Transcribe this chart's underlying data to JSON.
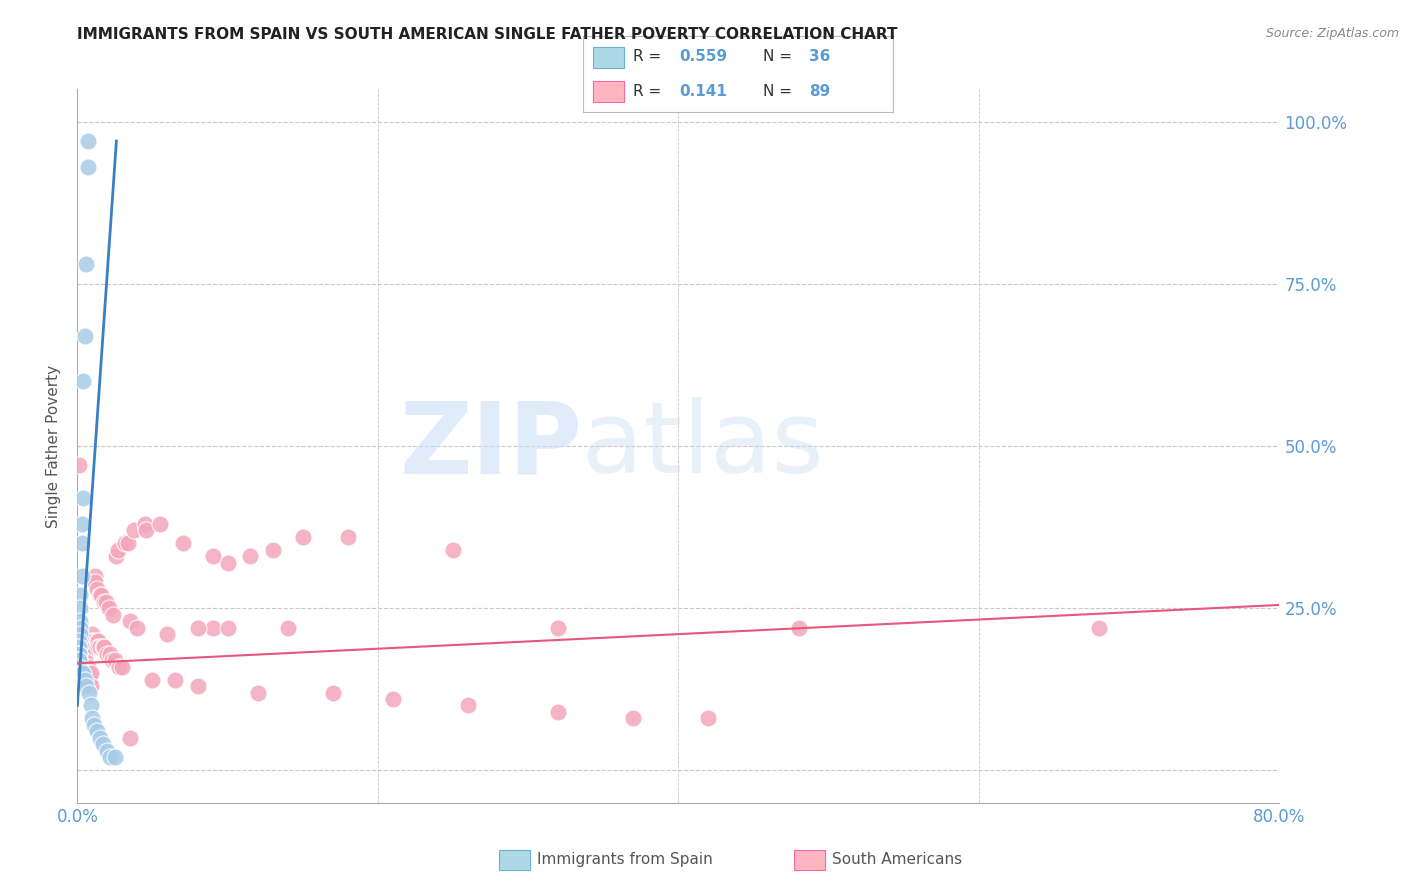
{
  "title": "IMMIGRANTS FROM SPAIN VS SOUTH AMERICAN SINGLE FATHER POVERTY CORRELATION CHART",
  "source": "Source: ZipAtlas.com",
  "ylabel": "Single Father Poverty",
  "xlim": [
    0.0,
    0.8
  ],
  "ylim": [
    -0.05,
    1.05
  ],
  "watermark_zip": "ZIP",
  "watermark_atlas": "atlas",
  "legend_R_blue": "0.559",
  "legend_N_blue": "36",
  "legend_R_pink": "0.141",
  "legend_N_pink": "89",
  "blue_color": "#a8cce8",
  "blue_line_color": "#3a7fc1",
  "pink_color": "#f4a7bb",
  "pink_line_color": "#e8567a",
  "grid_color": "#c8c8c8",
  "background_color": "#ffffff",
  "title_color": "#222222",
  "right_axis_color": "#5b9bd5",
  "xtick_color": "#5b9bd5",
  "blue_scatter_x": [
    0.007,
    0.007,
    0.006,
    0.005,
    0.004,
    0.004,
    0.003,
    0.003,
    0.003,
    0.002,
    0.002,
    0.002,
    0.002,
    0.002,
    0.001,
    0.001,
    0.001,
    0.001,
    0.001,
    0.001,
    0.001,
    0.001,
    0.003,
    0.004,
    0.005,
    0.006,
    0.008,
    0.009,
    0.01,
    0.011,
    0.013,
    0.015,
    0.017,
    0.02,
    0.022,
    0.025
  ],
  "blue_scatter_y": [
    0.97,
    0.93,
    0.78,
    0.67,
    0.6,
    0.42,
    0.38,
    0.35,
    0.3,
    0.27,
    0.25,
    0.23,
    0.22,
    0.21,
    0.2,
    0.19,
    0.19,
    0.18,
    0.18,
    0.17,
    0.17,
    0.16,
    0.15,
    0.15,
    0.14,
    0.13,
    0.12,
    0.1,
    0.08,
    0.07,
    0.06,
    0.05,
    0.04,
    0.03,
    0.02,
    0.02
  ],
  "pink_scatter_x": [
    0.001,
    0.001,
    0.001,
    0.002,
    0.002,
    0.002,
    0.003,
    0.003,
    0.003,
    0.004,
    0.004,
    0.004,
    0.004,
    0.005,
    0.005,
    0.005,
    0.005,
    0.006,
    0.006,
    0.006,
    0.007,
    0.007,
    0.007,
    0.008,
    0.008,
    0.009,
    0.009,
    0.01,
    0.01,
    0.011,
    0.011,
    0.012,
    0.012,
    0.013,
    0.013,
    0.014,
    0.014,
    0.015,
    0.015,
    0.016,
    0.017,
    0.018,
    0.018,
    0.019,
    0.02,
    0.021,
    0.022,
    0.023,
    0.024,
    0.025,
    0.026,
    0.027,
    0.028,
    0.03,
    0.032,
    0.034,
    0.035,
    0.038,
    0.04,
    0.045,
    0.046,
    0.05,
    0.055,
    0.06,
    0.065,
    0.07,
    0.08,
    0.09,
    0.1,
    0.12,
    0.14,
    0.17,
    0.21,
    0.26,
    0.32,
    0.37,
    0.42,
    0.48,
    0.32,
    0.25,
    0.18,
    0.15,
    0.13,
    0.115,
    0.1,
    0.09,
    0.08,
    0.68,
    0.035
  ],
  "pink_scatter_y": [
    0.47,
    0.21,
    0.15,
    0.19,
    0.15,
    0.13,
    0.18,
    0.16,
    0.14,
    0.17,
    0.16,
    0.15,
    0.13,
    0.17,
    0.16,
    0.15,
    0.13,
    0.16,
    0.15,
    0.14,
    0.16,
    0.15,
    0.13,
    0.15,
    0.14,
    0.15,
    0.13,
    0.21,
    0.2,
    0.2,
    0.19,
    0.3,
    0.29,
    0.2,
    0.28,
    0.2,
    0.19,
    0.27,
    0.19,
    0.27,
    0.19,
    0.26,
    0.19,
    0.26,
    0.18,
    0.25,
    0.18,
    0.17,
    0.24,
    0.17,
    0.33,
    0.34,
    0.16,
    0.16,
    0.35,
    0.35,
    0.23,
    0.37,
    0.22,
    0.38,
    0.37,
    0.14,
    0.38,
    0.21,
    0.14,
    0.35,
    0.13,
    0.22,
    0.22,
    0.12,
    0.22,
    0.12,
    0.11,
    0.1,
    0.09,
    0.08,
    0.08,
    0.22,
    0.22,
    0.34,
    0.36,
    0.36,
    0.34,
    0.33,
    0.32,
    0.33,
    0.22,
    0.22,
    0.05
  ],
  "blue_trend_x": [
    0.0,
    0.026
  ],
  "blue_trend_y": [
    0.1,
    0.97
  ],
  "pink_trend_x": [
    0.0,
    0.8
  ],
  "pink_trend_y": [
    0.165,
    0.255
  ]
}
